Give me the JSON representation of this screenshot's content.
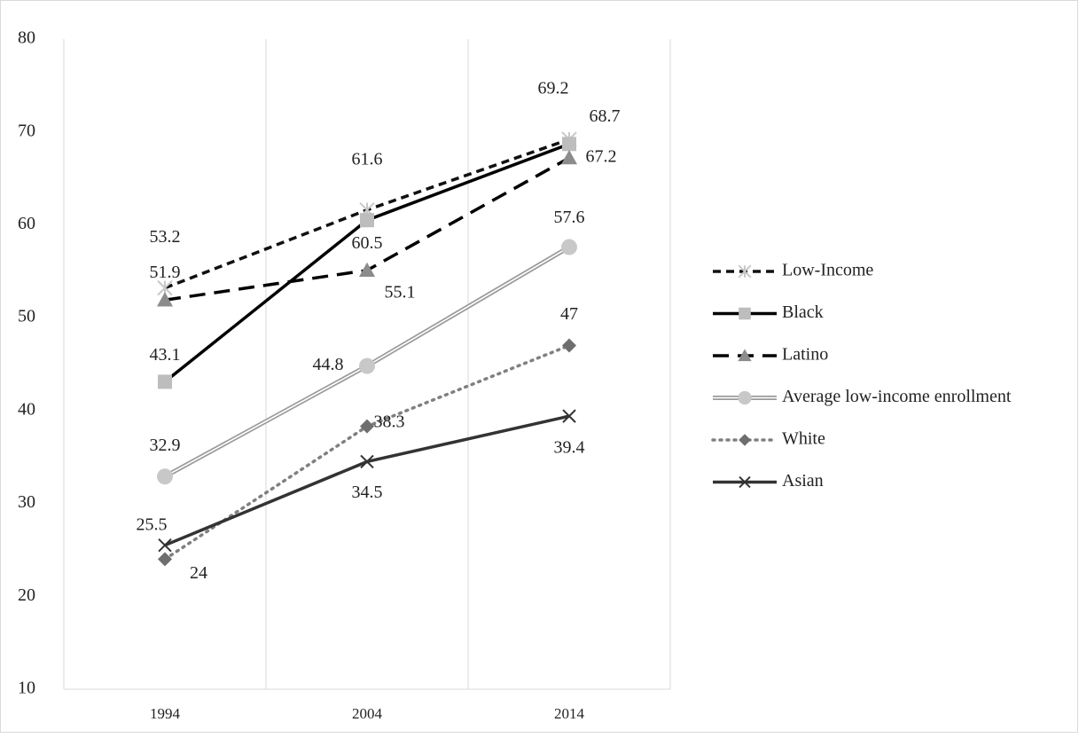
{
  "chart_data": {
    "type": "line",
    "title": "",
    "xlabel": "",
    "ylabel": "",
    "categories": [
      "1994",
      "2004",
      "2014"
    ],
    "ylim": [
      10,
      80
    ],
    "yticks": [
      "10",
      "20",
      "30",
      "40",
      "50",
      "60",
      "70",
      "80"
    ],
    "grid": "vertical",
    "legend_position": "right",
    "series": [
      {
        "name": "Low-Income",
        "values": [
          53.2,
          61.6,
          69.2
        ],
        "labels": [
          "53.2",
          "61.6",
          "69.2"
        ],
        "color": "#111111",
        "marker": "asterisk",
        "marker_color": "#c8c8c8",
        "line": "short-dash"
      },
      {
        "name": "Black",
        "values": [
          43.1,
          60.5,
          68.7
        ],
        "labels": [
          "43.1",
          "60.5",
          "68.7"
        ],
        "color": "#000000",
        "marker": "square",
        "marker_color": "#bdbdbd",
        "line": "solid"
      },
      {
        "name": "Latino",
        "values": [
          51.9,
          55.1,
          67.2
        ],
        "labels": [
          "51.9",
          "55.1",
          "67.2"
        ],
        "color": "#000000",
        "marker": "triangle",
        "marker_color": "#8c8c8c",
        "line": "long-dash"
      },
      {
        "name": "Average low-income enrollment",
        "values": [
          32.9,
          44.8,
          57.6
        ],
        "labels": [
          "32.9",
          "44.8",
          "57.6"
        ],
        "color": "#9a9a9a",
        "marker": "circle",
        "marker_color": "#c8c8c8",
        "line": "double"
      },
      {
        "name": "White",
        "values": [
          24,
          38.3,
          47
        ],
        "labels": [
          "24",
          "38.3",
          "47"
        ],
        "color": "#808080",
        "marker": "diamond",
        "marker_color": "#6e6e6e",
        "line": "dotted"
      },
      {
        "name": "Asian",
        "values": [
          25.5,
          34.5,
          39.4
        ],
        "labels": [
          "25.5",
          "34.5",
          "39.4"
        ],
        "color": "#333333",
        "marker": "x",
        "marker_color": "#333333",
        "line": "solid"
      }
    ]
  }
}
